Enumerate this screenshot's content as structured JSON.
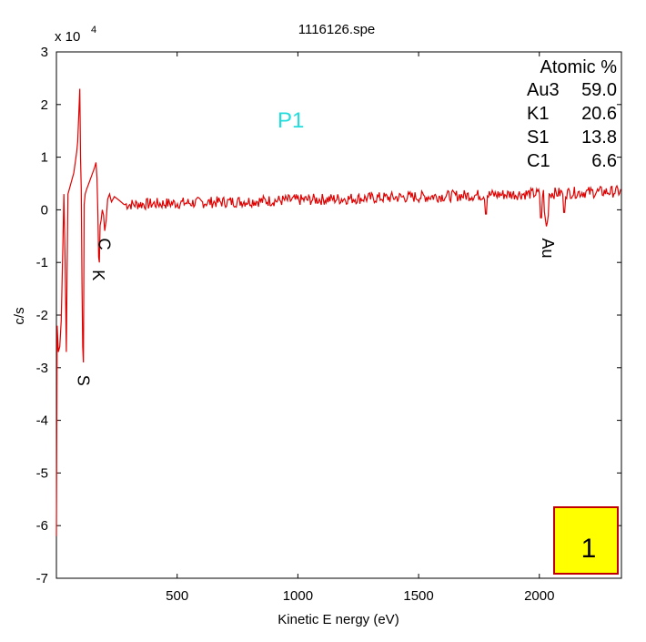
{
  "chart_data": {
    "type": "line",
    "title": "1116126.spe",
    "xlabel": "Kinetic E nergy (eV)",
    "ylabel": "c/s",
    "y_multiplier_label": "x 10",
    "y_multiplier_exp": "4",
    "xlim": [
      0,
      2340
    ],
    "ylim": [
      -7,
      3
    ],
    "xticks": [
      500,
      1000,
      1500,
      2000
    ],
    "yticks": [
      3,
      2,
      1,
      0,
      -1,
      -2,
      -3,
      -4,
      -5,
      -6,
      -7
    ],
    "grid": false,
    "series_color": "#e00000",
    "series": [
      {
        "points": [
          [
            0,
            -6.2
          ],
          [
            3,
            -2.2
          ],
          [
            8,
            -2.7
          ],
          [
            14,
            -2.6
          ],
          [
            20,
            -2.1
          ],
          [
            27,
            -0.6
          ],
          [
            31,
            0.3
          ],
          [
            36,
            -1.0
          ],
          [
            41,
            -2.7
          ],
          [
            44,
            -1.2
          ],
          [
            48,
            0.3
          ],
          [
            54,
            0.4
          ],
          [
            60,
            0.5
          ],
          [
            66,
            0.6
          ],
          [
            72,
            0.7
          ],
          [
            78,
            0.9
          ],
          [
            84,
            1.1
          ],
          [
            88,
            1.3
          ],
          [
            97,
            2.3
          ],
          [
            100,
            1.0
          ],
          [
            103,
            0.4
          ],
          [
            106,
            -1.4
          ],
          [
            109,
            -2.6
          ],
          [
            112,
            -2.9
          ],
          [
            115,
            0.1
          ],
          [
            119,
            0.3
          ],
          [
            126,
            0.4
          ],
          [
            134,
            0.5
          ],
          [
            142,
            0.6
          ],
          [
            150,
            0.7
          ],
          [
            158,
            0.8
          ],
          [
            164,
            0.9
          ],
          [
            168,
            0.6
          ],
          [
            172,
            -0.1
          ],
          [
            175,
            -0.9
          ],
          [
            178,
            -1.0
          ],
          [
            181,
            -0.3
          ],
          [
            185,
            -0.2
          ],
          [
            190,
            0.0
          ],
          [
            195,
            -0.1
          ],
          [
            200,
            -0.4
          ],
          [
            206,
            -0.2
          ],
          [
            212,
            0.2
          ],
          [
            220,
            0.3
          ],
          [
            228,
            0.15
          ],
          [
            240,
            0.25
          ],
          [
            260,
            0.18
          ],
          [
            280,
            0.1
          ]
        ]
      }
    ],
    "peak_labels": [
      {
        "text": "S",
        "x": 112,
        "y": -3.0
      },
      {
        "text": "K",
        "x": 173,
        "y": -1.0
      },
      {
        "text": "C",
        "x": 198,
        "y": -0.4
      },
      {
        "text": "Au",
        "x": 2035,
        "y": -0.4
      }
    ],
    "inset_label": {
      "text": "P1",
      "color": "#22dddd"
    },
    "composition_table": {
      "header": "Atomic %",
      "rows": [
        {
          "element": "Au3",
          "value": "59.0"
        },
        {
          "element": "K1",
          "value": "20.6"
        },
        {
          "element": "S1",
          "value": "13.8"
        },
        {
          "element": "C1",
          "value": "6.6"
        }
      ]
    },
    "badge": {
      "text": "1",
      "fill": "#ffff00",
      "border": "#c00000"
    }
  }
}
